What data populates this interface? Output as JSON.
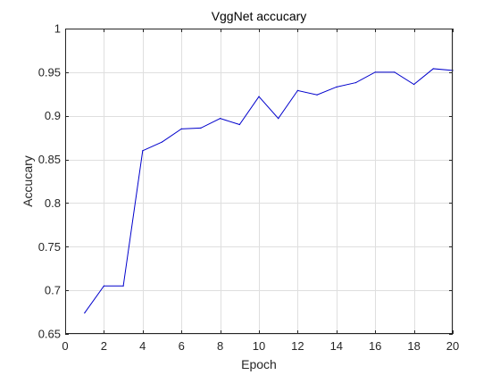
{
  "chart_data": {
    "type": "line",
    "title": "VggNet accucary",
    "xlabel": "Epoch",
    "ylabel": "Accucary",
    "xlim": [
      0,
      20
    ],
    "ylim": [
      0.65,
      1
    ],
    "xticks": [
      0,
      2,
      4,
      6,
      8,
      10,
      12,
      14,
      16,
      18,
      20
    ],
    "yticks": [
      0.65,
      0.7,
      0.75,
      0.8,
      0.85,
      0.9,
      0.95,
      1
    ],
    "ytick_labels": [
      "0.65",
      "0.7",
      "0.75",
      "0.8",
      "0.85",
      "0.9",
      "0.95",
      "1"
    ],
    "grid": true,
    "series": [
      {
        "color": "#0000cc",
        "x": [
          1,
          2,
          3,
          4,
          5,
          6,
          7,
          8,
          9,
          10,
          11,
          12,
          13,
          14,
          15,
          16,
          17,
          18,
          19,
          20
        ],
        "y": [
          0.674,
          0.705,
          0.705,
          0.86,
          0.87,
          0.885,
          0.886,
          0.897,
          0.89,
          0.922,
          0.897,
          0.929,
          0.924,
          0.933,
          0.938,
          0.95,
          0.95,
          0.936,
          0.954,
          0.952
        ]
      }
    ]
  }
}
